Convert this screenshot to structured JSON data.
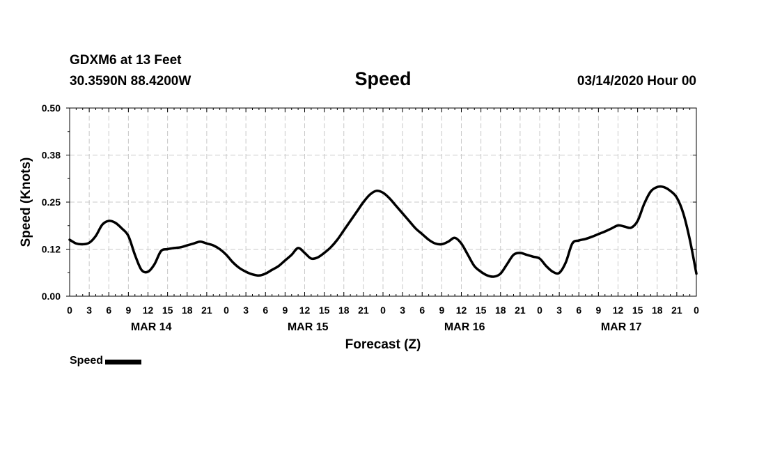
{
  "header": {
    "station": "GDXM6 at 13 Feet",
    "coords": "30.3590N 88.4200W",
    "title": "Speed",
    "datestamp": "03/14/2020 Hour 00"
  },
  "legend": {
    "label": "Speed",
    "color": "#000000"
  },
  "chart_data": {
    "type": "line",
    "title": "Speed",
    "xlabel": "Forecast (Z)",
    "ylabel": "Speed (Knots)",
    "ylim": [
      0,
      0.5
    ],
    "yticks": [
      "0.00",
      "0.12",
      "0.25",
      "0.38",
      "0.50"
    ],
    "xlim": [
      0,
      96
    ],
    "x_unit": "forecast hours from 03/14/2020 00Z",
    "xtick_labels": [
      "0",
      "3",
      "6",
      "9",
      "12",
      "15",
      "18",
      "21",
      "0",
      "3",
      "6",
      "9",
      "12",
      "15",
      "18",
      "21",
      "0",
      "3",
      "6",
      "9",
      "12",
      "15",
      "18",
      "21",
      "0",
      "3",
      "6",
      "9",
      "12",
      "15",
      "18",
      "21",
      "0"
    ],
    "day_labels": [
      "MAR 14",
      "MAR 15",
      "MAR 16",
      "MAR 17"
    ],
    "grid": true,
    "legend_position": "bottom-left",
    "series": [
      {
        "name": "Speed",
        "color": "#000000",
        "x": [
          0,
          1,
          2,
          3,
          4,
          5,
          6,
          7,
          8,
          9,
          10,
          11,
          12,
          13,
          14,
          15,
          16,
          17,
          18,
          19,
          20,
          21,
          22,
          23,
          24,
          25,
          26,
          27,
          28,
          29,
          30,
          31,
          32,
          33,
          34,
          35,
          36,
          37,
          38,
          39,
          40,
          41,
          42,
          43,
          44,
          45,
          46,
          47,
          48,
          49,
          50,
          51,
          52,
          53,
          54,
          55,
          56,
          57,
          58,
          59,
          60,
          61,
          62,
          63,
          64,
          65,
          66,
          67,
          68,
          69,
          70,
          71,
          72,
          73,
          74,
          75,
          76,
          77,
          78,
          79,
          80,
          81,
          82,
          83,
          84,
          85,
          86,
          87,
          88,
          89,
          90,
          91,
          92,
          93,
          94,
          95,
          96
        ],
        "values": [
          0.15,
          0.14,
          0.138,
          0.142,
          0.16,
          0.19,
          0.2,
          0.195,
          0.18,
          0.16,
          0.11,
          0.07,
          0.065,
          0.085,
          0.12,
          0.125,
          0.128,
          0.13,
          0.135,
          0.14,
          0.145,
          0.14,
          0.135,
          0.125,
          0.11,
          0.09,
          0.075,
          0.065,
          0.058,
          0.055,
          0.06,
          0.07,
          0.08,
          0.095,
          0.11,
          0.128,
          0.115,
          0.1,
          0.103,
          0.115,
          0.13,
          0.15,
          0.175,
          0.2,
          0.225,
          0.25,
          0.27,
          0.28,
          0.275,
          0.26,
          0.24,
          0.22,
          0.2,
          0.18,
          0.165,
          0.15,
          0.14,
          0.138,
          0.145,
          0.155,
          0.14,
          0.11,
          0.08,
          0.065,
          0.055,
          0.052,
          0.06,
          0.085,
          0.11,
          0.115,
          0.11,
          0.105,
          0.1,
          0.08,
          0.065,
          0.062,
          0.09,
          0.14,
          0.148,
          0.152,
          0.158,
          0.165,
          0.172,
          0.18,
          0.188,
          0.185,
          0.182,
          0.2,
          0.245,
          0.278,
          0.29,
          0.29,
          0.28,
          0.262,
          0.22,
          0.15,
          0.06
        ]
      }
    ]
  }
}
